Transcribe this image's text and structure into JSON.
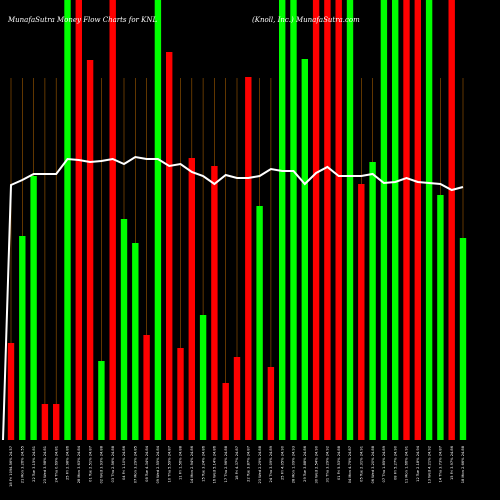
{
  "chart_data": {
    "type": "bar",
    "title_left": "MunafaSutra Money Flow Charts for KNL",
    "title_right": "(Knoll, Inc.) MunafaSutra.com",
    "ylim": [
      0,
      440
    ],
    "line_ylim": [
      0,
      440
    ],
    "grid": "vertical",
    "colors": {
      "up": "#00ff00",
      "down": "#ff0000",
      "line": "#ffffff",
      "grid": "#a05a00",
      "background": "#000000"
    },
    "categories": [
      "18 Fri 1094.56% 24.57",
      "21 Mon 3.26% 24.55",
      "22 Tue 3.15% 24.81",
      "23 Wed 3.98% 24.81",
      "24 Thu 0.69% 24.81",
      "25 Fri 2.98% 24.86",
      "28 Mon 3.63% 24.84",
      "01 Tue 2.51% 24.87",
      "02 Wed 3.93% 24.88",
      "03 Thu 2.56% 24.88",
      "04 Fri 1.10% 24.86",
      "07 Mon 3.29% 24.85",
      "08 Tue 4.34% 24.84",
      "09 Wed 2.55% 24.84",
      "10 Thu 5.59% 24.87",
      "11 Fri 1.56% 24.88",
      "14 Mon 2.94% 24.86",
      "15 Tue 3.24% 24.86",
      "16 Wed 5.14% 24.86",
      "17 Thu 2.96% 24.88",
      "18 Fri 4.37% 24.87",
      "22 Tue 3.87% 24.87",
      "23 Wed 2.29% 24.88",
      "24 Thu 3.09% 24.89",
      "25 Fri 4.05% 24.90",
      "28 Mon 1.09% 24.93",
      "29 Tue 3.88% 24.86",
      "30 Wed 2.54% 24.90",
      "31 Thu 3.29% 24.92",
      "01 Fri 5.53% 24.88",
      "04 Mon 4.79% 24.87",
      "05 Tue 2.31% 24.91",
      "06 Wed 3.20% 24.88",
      "07 Thu 1.85% 24.89",
      "08 Fri 5.27% 24.90",
      "11 Mon 1.66% 24.91",
      "12 Tue 2.18% 24.94",
      "13 Wed 4.21% 24.92",
      "14 Thu 3.73% 24.87",
      "15 Fri 3.97% 24.86",
      "18 Mon 2.66% 24.88"
    ],
    "series": [
      {
        "directions": [
          "down",
          "up",
          "up",
          "down",
          "down",
          "up",
          "down",
          "down",
          "up",
          "down",
          "up",
          "up",
          "down",
          "up",
          "down",
          "down",
          "down",
          "up",
          "down",
          "down",
          "down",
          "down",
          "up",
          "down",
          "up",
          "up",
          "up",
          "down",
          "down",
          "down",
          "up",
          "down",
          "up",
          "up",
          "up",
          "down",
          "down",
          "up",
          "up",
          "down",
          "up"
        ],
        "values": [
          97,
          204,
          264,
          36,
          36,
          440,
          440,
          380,
          79,
          440,
          221,
          197,
          105,
          440,
          388,
          92,
          282,
          125,
          274,
          57,
          83,
          363,
          234,
          73,
          440,
          440,
          381,
          440,
          440,
          440,
          440,
          256,
          278,
          440,
          440,
          440,
          440,
          440,
          245,
          440,
          202
        ],
        "line": [
          255,
          260,
          266,
          266,
          266,
          281,
          280,
          278,
          279,
          281,
          276,
          283,
          281,
          281,
          274,
          276,
          268,
          264,
          256,
          265,
          262,
          262,
          264,
          271,
          269,
          269,
          256,
          267,
          273,
          264,
          264,
          264,
          266,
          257,
          258,
          262,
          258,
          257,
          256,
          250,
          253
        ]
      }
    ]
  }
}
